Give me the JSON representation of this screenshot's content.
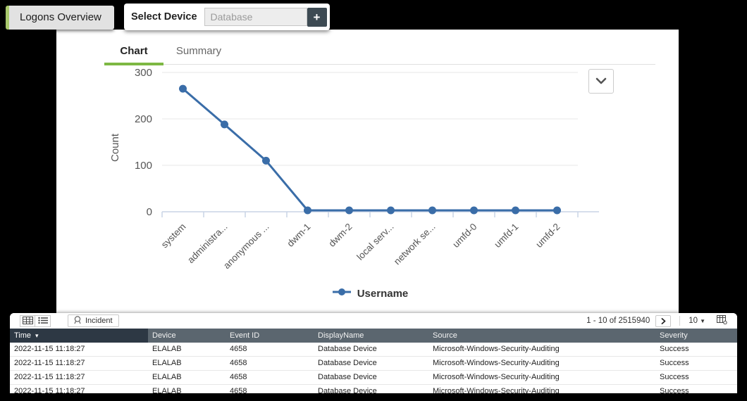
{
  "app": {
    "title": "Logons Overview"
  },
  "device_selector": {
    "label": "Select Device",
    "placeholder": "Database",
    "add_button_label": "+"
  },
  "tabs": [
    {
      "label": "Chart",
      "active": true
    },
    {
      "label": "Summary",
      "active": false
    }
  ],
  "chart_controls": {
    "collapse_icon": "chevron-down-icon"
  },
  "chart_data": {
    "type": "line",
    "title": "",
    "categories": [
      "system",
      "administra...",
      "anonymous ...",
      "dwm-1",
      "dwm-2",
      "local serv...",
      "network se...",
      "umfd-0",
      "umfd-1",
      "umfd-2"
    ],
    "series": [
      {
        "name": "Username",
        "values": [
          265,
          188,
          110,
          3,
          3,
          3,
          3,
          3,
          3,
          3
        ]
      }
    ],
    "xlabel": "",
    "ylabel": "Count",
    "yticks": [
      0,
      100,
      200,
      300
    ],
    "ylim": [
      0,
      300
    ],
    "grid": true,
    "legend_position": "bottom",
    "line_color": "#3a6da8"
  },
  "table": {
    "view_icons": [
      "table-view-icon",
      "list-view-icon"
    ],
    "incident_button": {
      "label": "Incident",
      "icon": "incident-icon"
    },
    "pagination": {
      "range_text": "1 - 10 of 2515940",
      "next_icon": "chevron-right-icon",
      "page_size": "10",
      "columns_icon": "column-settings-icon"
    },
    "columns": [
      "Time",
      "Device",
      "Event ID",
      "DisplayName",
      "Source",
      "Severity"
    ],
    "sorted_column": "Time",
    "sort_direction": "desc",
    "rows": [
      [
        "2022-11-15 11:18:27",
        "ELALAB",
        "4658",
        "Database Device",
        "Microsoft-Windows-Security-Auditing",
        "Success"
      ],
      [
        "2022-11-15 11:18:27",
        "ELALAB",
        "4658",
        "Database Device",
        "Microsoft-Windows-Security-Auditing",
        "Success"
      ],
      [
        "2022-11-15 11:18:27",
        "ELALAB",
        "4658",
        "Database Device",
        "Microsoft-Windows-Security-Auditing",
        "Success"
      ],
      [
        "2022-11-15 11:18:27",
        "ELALAB",
        "4658",
        "Database Device",
        "Microsoft-Windows-Security-Auditing",
        "Success"
      ]
    ]
  },
  "colors": {
    "accent_green": "#7db843",
    "tab_border_green": "#a9c96d",
    "chart_blue": "#3a6da8",
    "axis_blue": "#c8d4e6",
    "header_dark": "#5b666f",
    "sorted_header_dark": "#2d3844",
    "button_slate": "#3d4a53",
    "background": "#000000"
  }
}
